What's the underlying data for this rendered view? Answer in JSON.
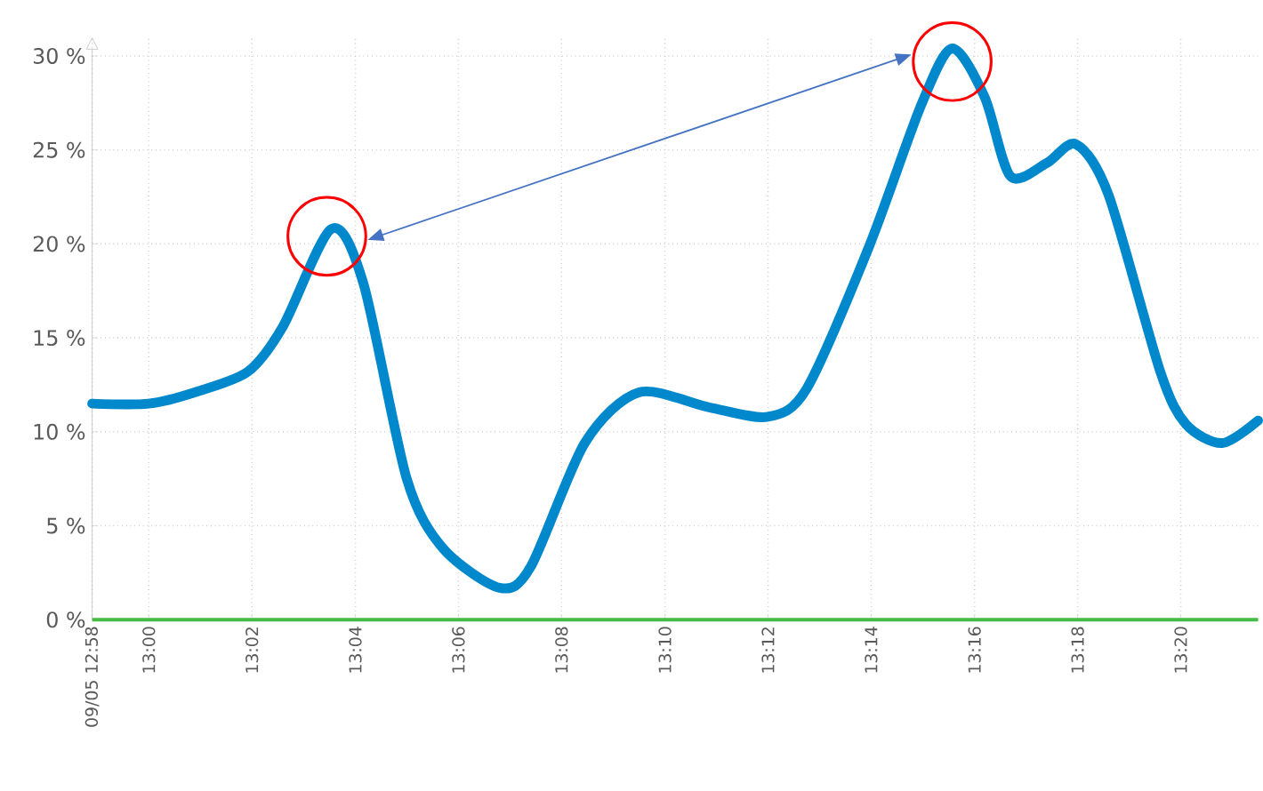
{
  "chart_data": {
    "type": "line",
    "x": [
      12.9817,
      13.0,
      13.0148,
      13.032,
      13.0433,
      13.059,
      13.0693,
      13.0833,
      13.095,
      13.1133,
      13.1233,
      13.1408,
      13.1583,
      13.181,
      13.2,
      13.2125,
      13.2325,
      13.2495,
      13.2595,
      13.27,
      13.2783,
      13.29,
      13.2995,
      13.31,
      13.3267,
      13.335,
      13.3467,
      13.3583
    ],
    "series": [
      {
        "color": "#0088cc",
        "values": [
          11.5,
          11.5,
          12.1,
          13.2,
          15.6,
          20.8,
          17.9,
          7.5,
          3.8,
          1.7,
          2.8,
          9.4,
          12.1,
          11.3,
          10.8,
          12.3,
          19.8,
          27.4,
          30.4,
          27.8,
          23.6,
          24.3,
          25.3,
          22.6,
          13.2,
          10.4,
          9.4,
          10.6
        ]
      }
    ],
    "xlim": [
      12.9817,
      13.3583
    ],
    "ylim": [
      0,
      31
    ],
    "xticks": [
      {
        "value": 12.9817,
        "label": "09/05 12:58"
      },
      {
        "value": 13.0,
        "label": "13:00"
      },
      {
        "value": 13.0333,
        "label": "13:02"
      },
      {
        "value": 13.0667,
        "label": "13:04"
      },
      {
        "value": 13.1,
        "label": "13:06"
      },
      {
        "value": 13.1333,
        "label": "13:08"
      },
      {
        "value": 13.1667,
        "label": "13:10"
      },
      {
        "value": 13.2,
        "label": "13:12"
      },
      {
        "value": 13.2333,
        "label": "13:14"
      },
      {
        "value": 13.2667,
        "label": "13:16"
      },
      {
        "value": 13.3,
        "label": "13:18"
      },
      {
        "value": 13.3333,
        "label": "13:20"
      }
    ],
    "yticks": [
      {
        "value": 0,
        "label": "0 %"
      },
      {
        "value": 5,
        "label": "5 %"
      },
      {
        "value": 10,
        "label": "10 %"
      },
      {
        "value": 15,
        "label": "15 %"
      },
      {
        "value": 20,
        "label": "20 %"
      },
      {
        "value": 25,
        "label": "25 %"
      },
      {
        "value": 30,
        "label": "30 %"
      }
    ],
    "grid": true,
    "marker": "none",
    "line_style": "solid"
  }
}
